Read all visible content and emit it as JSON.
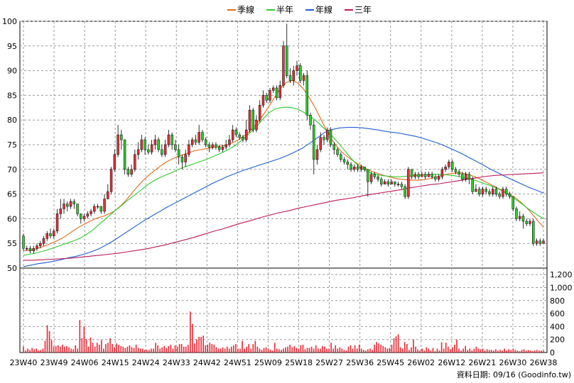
{
  "chart_data": {
    "type": "candlestick",
    "legend": {
      "placement": "top-center",
      "items": [
        {
          "name": "季線",
          "color": "#e06a1a"
        },
        {
          "name": "半年",
          "color": "#2ecc2e"
        },
        {
          "name": "年線",
          "color": "#1f5fd6"
        },
        {
          "name": "三年",
          "color": "#c0185a"
        }
      ]
    },
    "price_axis": {
      "ylim": [
        50,
        100
      ],
      "ticks": [
        "50",
        "55",
        "60",
        "65",
        "70",
        "75",
        "80",
        "85",
        "90",
        "95",
        "100"
      ]
    },
    "volume_axis": {
      "ylim": [
        0,
        1300
      ],
      "ticks": [
        "0",
        "200",
        "400",
        "600",
        "800",
        "1,000",
        "1,200"
      ]
    },
    "x_ticks": [
      "23W40",
      "23W49",
      "24W06",
      "24W15",
      "24W24",
      "24W33",
      "24W42",
      "24W51",
      "25W09",
      "25W18",
      "25W27",
      "25W36",
      "25W45",
      "26W02",
      "26W12",
      "26W21",
      "26W30",
      "26W38"
    ],
    "grid": true,
    "candle_colors": {
      "up": "#e8303a",
      "down": "#2ecc2e"
    },
    "volume_color": "#e8303a",
    "footer_credit": "資料日期: 09/16  (Goodinfo.tw)",
    "candles": [
      [
        56.5,
        54,
        57,
        53.5
      ],
      [
        54,
        54,
        54.5,
        53.5
      ],
      [
        54,
        53.5,
        54.5,
        53
      ],
      [
        53.5,
        54,
        54.5,
        53
      ],
      [
        54,
        54.5,
        55,
        53.5
      ],
      [
        54.5,
        55,
        55.5,
        54
      ],
      [
        55,
        56,
        56.5,
        54.5
      ],
      [
        56,
        57,
        57.5,
        55.5
      ],
      [
        57,
        56.5,
        58,
        56
      ],
      [
        56.5,
        57.5,
        58,
        56
      ],
      [
        57.5,
        61,
        62,
        57
      ],
      [
        61,
        62,
        64,
        60
      ],
      [
        62,
        63,
        64,
        61
      ],
      [
        63,
        62.5,
        63.5,
        61.5
      ],
      [
        62.5,
        63.5,
        64,
        62
      ],
      [
        63.5,
        63,
        64,
        62
      ],
      [
        63,
        61,
        62.5,
        60.5
      ],
      [
        61,
        60,
        61,
        59
      ],
      [
        60,
        60.5,
        61,
        59.5
      ],
      [
        60.5,
        61,
        61.5,
        60
      ],
      [
        61,
        61.5,
        62,
        60.5
      ],
      [
        61.5,
        62.5,
        63,
        61
      ],
      [
        62.5,
        62.5,
        63,
        62
      ],
      [
        62.5,
        61.5,
        62.5,
        61
      ],
      [
        61.5,
        64,
        65,
        61
      ],
      [
        64,
        65.5,
        67,
        64
      ],
      [
        65.5,
        70,
        70.5,
        65
      ],
      [
        70,
        73,
        74,
        69.5
      ],
      [
        73,
        77,
        79,
        72.5
      ],
      [
        77,
        76,
        78,
        74
      ],
      [
        76,
        70,
        72,
        69
      ],
      [
        70,
        69,
        70.5,
        68.5
      ],
      [
        69,
        70,
        71,
        68.5
      ],
      [
        70,
        73,
        74,
        69.5
      ],
      [
        73,
        74,
        75.5,
        72
      ],
      [
        74,
        76,
        77,
        73.5
      ],
      [
        76,
        74,
        76.5,
        73
      ],
      [
        74,
        73.5,
        75,
        73
      ],
      [
        73.5,
        75,
        76,
        73
      ],
      [
        75,
        76,
        77,
        74
      ],
      [
        76,
        74,
        76.5,
        73.5
      ],
      [
        74,
        73,
        75,
        72.5
      ],
      [
        73,
        75,
        76,
        72.5
      ],
      [
        75,
        77,
        78,
        74.5
      ],
      [
        77,
        75,
        77.5,
        74
      ],
      [
        75,
        74,
        76,
        73.5
      ],
      [
        74,
        72.5,
        75,
        71
      ],
      [
        72.5,
        71.5,
        73,
        70
      ],
      [
        71.5,
        73,
        74,
        70.5
      ],
      [
        73,
        75,
        76,
        72.5
      ],
      [
        75,
        76,
        76.5,
        74.5
      ],
      [
        76,
        75.5,
        77,
        75
      ],
      [
        75.5,
        77.5,
        79,
        75
      ],
      [
        77.5,
        76,
        78,
        75.5
      ],
      [
        76,
        75,
        76.5,
        74.5
      ],
      [
        75,
        74.5,
        75.5,
        73.5
      ],
      [
        74.5,
        75,
        75.5,
        74
      ],
      [
        75,
        74.5,
        75.5,
        74
      ],
      [
        74.5,
        74,
        75,
        73.5
      ],
      [
        74,
        74.5,
        75,
        73.5
      ],
      [
        74.5,
        75,
        76,
        74
      ],
      [
        75,
        76,
        77,
        74.5
      ],
      [
        76,
        78,
        79,
        75.5
      ],
      [
        78,
        77,
        78.5,
        76.5
      ],
      [
        77,
        76.5,
        77.5,
        76
      ],
      [
        76.5,
        76,
        77,
        75.5
      ],
      [
        76,
        78,
        80,
        75.5
      ],
      [
        78,
        82,
        83,
        77.5
      ],
      [
        82,
        78,
        82.5,
        77.5
      ],
      [
        78,
        80,
        81,
        77.5
      ],
      [
        80,
        83,
        84,
        79.5
      ],
      [
        83,
        85,
        86,
        82.5
      ],
      [
        85,
        84,
        85.5,
        83.5
      ],
      [
        84,
        86,
        86.5,
        83.5
      ],
      [
        86,
        86.5,
        87,
        85.5
      ],
      [
        86.5,
        84.5,
        87,
        84
      ],
      [
        84.5,
        87,
        88,
        84
      ],
      [
        87,
        95,
        96,
        86.5
      ],
      [
        95,
        89,
        99.5,
        88.5
      ],
      [
        89,
        88,
        90.5,
        87.5
      ],
      [
        88,
        90,
        91,
        87
      ],
      [
        90,
        91,
        92,
        89
      ],
      [
        91,
        88,
        91.5,
        87.5
      ],
      [
        88,
        89,
        89.5,
        87
      ],
      [
        89,
        81,
        90,
        80
      ],
      [
        81,
        79,
        81.5,
        78
      ],
      [
        79,
        72,
        80,
        69
      ],
      [
        72,
        74,
        75,
        71
      ],
      [
        74,
        76.5,
        77.5,
        73.5
      ],
      [
        76.5,
        76,
        77,
        75
      ],
      [
        76,
        78,
        78.5,
        75.5
      ],
      [
        78,
        75,
        78.5,
        74.5
      ],
      [
        75,
        74,
        75.5,
        73
      ],
      [
        74,
        73,
        74.5,
        72.5
      ],
      [
        73,
        72,
        73.5,
        71.5
      ],
      [
        72,
        71.5,
        72.5,
        71
      ],
      [
        71.5,
        71,
        72,
        70
      ],
      [
        71,
        70,
        71.5,
        69.5
      ],
      [
        70,
        70.5,
        71,
        69.5
      ],
      [
        70.5,
        70,
        71,
        69.5
      ],
      [
        70,
        70.5,
        71,
        69.5
      ],
      [
        70.5,
        70,
        70.5,
        69.5
      ],
      [
        70,
        67.5,
        70,
        64.5
      ],
      [
        67.5,
        69,
        69.5,
        67
      ],
      [
        69,
        68.5,
        69.5,
        68
      ],
      [
        68.5,
        68,
        69,
        67.5
      ],
      [
        68,
        67,
        68.5,
        66.5
      ],
      [
        67,
        67.5,
        68,
        67
      ],
      [
        67.5,
        67,
        68,
        66.5
      ],
      [
        67,
        67.5,
        68,
        67
      ],
      [
        67.5,
        67,
        67.5,
        66.5
      ],
      [
        67,
        67,
        67.5,
        66.5
      ],
      [
        67,
        66.5,
        67.5,
        66
      ],
      [
        66.5,
        64.5,
        67,
        64
      ],
      [
        64.5,
        70,
        70.5,
        64
      ],
      [
        70,
        68.5,
        70,
        68
      ],
      [
        68.5,
        69,
        69.5,
        68
      ],
      [
        69,
        68.5,
        69.5,
        68
      ],
      [
        68.5,
        69,
        69.5,
        68.5
      ],
      [
        69,
        68.5,
        69.5,
        68
      ],
      [
        68.5,
        69,
        69.5,
        68.5
      ],
      [
        69,
        68.5,
        69.5,
        68
      ],
      [
        68.5,
        68,
        69,
        67.5
      ],
      [
        68,
        68.5,
        69,
        67.5
      ],
      [
        68.5,
        70,
        70.5,
        68
      ],
      [
        70,
        70.5,
        71,
        69.5
      ],
      [
        70.5,
        71.5,
        72,
        70
      ],
      [
        71.5,
        70,
        72,
        69.5
      ],
      [
        70,
        69.5,
        70.5,
        69
      ],
      [
        69.5,
        69,
        70,
        68.5
      ],
      [
        69,
        68,
        69.5,
        67.5
      ],
      [
        68,
        69,
        69.5,
        67.5
      ],
      [
        69,
        68,
        69.5,
        67
      ],
      [
        68,
        65.5,
        68.5,
        65
      ],
      [
        65.5,
        66,
        67,
        65.5
      ],
      [
        66,
        65,
        66.5,
        64.5
      ],
      [
        65,
        66,
        66.5,
        64.5
      ],
      [
        66,
        65.5,
        66.5,
        65
      ],
      [
        65.5,
        65,
        66,
        64.5
      ],
      [
        65,
        66,
        66.5,
        64.5
      ],
      [
        66,
        65,
        66.5,
        64.5
      ],
      [
        65,
        64.5,
        65.5,
        64
      ],
      [
        64.5,
        66,
        66.5,
        64
      ],
      [
        66,
        65,
        66.5,
        64.5
      ],
      [
        65,
        64.5,
        65.5,
        64
      ],
      [
        64.5,
        62,
        64.5,
        61.5
      ],
      [
        62,
        60,
        62.5,
        59.5
      ],
      [
        60,
        60.5,
        61.5,
        59.5
      ],
      [
        60.5,
        59.5,
        61,
        58
      ],
      [
        59.5,
        59,
        60,
        58.5
      ],
      [
        59,
        59.5,
        60,
        58.5
      ],
      [
        59.5,
        55,
        60,
        54.5
      ],
      [
        55,
        55.5,
        56,
        54.5
      ],
      [
        55.5,
        55,
        56,
        54.5
      ],
      [
        55,
        55.5,
        56,
        55
      ]
    ],
    "volumes": [
      90,
      30,
      60,
      40,
      70,
      50,
      60,
      30,
      40,
      60,
      180,
      420,
      330,
      190,
      90,
      100,
      110,
      90,
      120,
      90,
      100,
      80,
      60,
      50,
      110,
      60,
      500,
      220,
      400,
      210,
      90,
      230,
      150,
      90,
      150,
      120,
      190,
      60,
      130,
      150,
      220,
      130,
      80,
      140,
      120,
      100,
      90,
      70,
      90,
      110,
      80,
      70,
      120,
      70,
      60,
      60,
      40,
      40,
      40,
      60,
      60,
      150,
      110,
      60,
      80,
      100,
      70,
      100,
      120,
      60,
      110,
      90,
      130,
      130,
      90,
      90,
      120,
      630,
      440,
      140,
      200,
      240,
      240,
      260,
      110,
      120,
      150,
      130,
      120,
      80,
      60,
      60,
      80,
      60,
      90,
      60,
      90,
      110,
      130,
      60,
      60,
      180,
      60,
      90,
      130,
      60,
      130,
      180,
      90,
      60,
      40,
      70,
      80,
      60,
      40,
      30,
      150,
      60,
      50,
      40,
      60,
      80,
      90,
      120,
      80,
      100,
      70,
      60,
      110,
      120,
      50,
      70,
      70,
      90,
      60,
      110,
      60,
      60,
      100,
      90,
      60,
      60,
      150,
      60,
      110,
      60,
      80,
      60,
      40,
      30,
      90,
      110,
      60,
      110,
      60,
      120,
      60,
      40,
      30,
      50,
      60,
      40,
      120,
      160,
      140,
      120,
      100,
      80,
      60,
      70,
      120,
      220,
      250,
      280,
      80,
      60,
      160,
      130,
      40,
      80,
      200,
      90,
      50,
      30,
      60,
      30,
      80,
      60,
      30,
      70,
      20,
      60,
      30,
      160,
      60,
      150,
      90,
      50,
      80,
      120,
      200,
      60,
      30,
      60,
      100,
      40,
      60,
      30,
      60,
      90,
      60,
      50,
      60,
      30,
      50,
      40,
      40,
      30,
      50,
      30,
      40,
      30,
      60,
      30,
      50,
      40,
      60,
      40,
      30,
      20,
      40,
      50,
      30,
      40,
      30,
      20,
      30,
      40,
      30,
      30,
      30
    ],
    "series": [
      {
        "name": "季線",
        "values": [
          53.5,
          53.6,
          53.8,
          54.2,
          54.6,
          55.1,
          55.6,
          56.2,
          57,
          57.8,
          58.5,
          59.1,
          59.7,
          60.2,
          60.5,
          61,
          61.6,
          62.6,
          63.8,
          65.2,
          66.6,
          67.8,
          68.9,
          69.8,
          70.7,
          71.5,
          72.1,
          72.6,
          73,
          73.4,
          73.8,
          74,
          74.2,
          74.4,
          74.6,
          74.8,
          75.1,
          75.6,
          76.3,
          77.1,
          78.2,
          79.5,
          81.1,
          82.8,
          84.7,
          86.5,
          87.6,
          88,
          87.5,
          86.3,
          84.6,
          82.6,
          80.3,
          78,
          76,
          74.4,
          73.2,
          72.3,
          71.5,
          70.8,
          70.1,
          69.6,
          69.2,
          68.8,
          68.5,
          68.2,
          68,
          67.9,
          67.8,
          67.8,
          67.9,
          68.1,
          68.4,
          68.7,
          69,
          69.2,
          69.3,
          69.2,
          68.9,
          68.5,
          68,
          67.4,
          66.8,
          66.2,
          65.6,
          65,
          64.3,
          63.4,
          62.3,
          61,
          59.6,
          58.3
        ]
      },
      {
        "name": "半年",
        "values": [
          52.6,
          52.8,
          53,
          53.3,
          53.6,
          54,
          54.4,
          54.8,
          55.2,
          55.6,
          56.1,
          56.8,
          57.6,
          58.6,
          59.6,
          60.6,
          61.6,
          62.5,
          63.5,
          64.4,
          65.3,
          66.2,
          67.1,
          67.8,
          68.4,
          68.9,
          69.4,
          69.9,
          70.4,
          70.8,
          71.2,
          71.6,
          72,
          72.5,
          73,
          73.5,
          74.1,
          74.8,
          75.7,
          76.7,
          77.8,
          79,
          80.3,
          81.5,
          82.2,
          82.5,
          82.6,
          82.5,
          82.2,
          81.6,
          80.9,
          80,
          79,
          77.9,
          76.8,
          75.5,
          74.1,
          72.7,
          71.4,
          70.4,
          69.7,
          69.2,
          68.9,
          68.7,
          68.6,
          68.5,
          68.5,
          68.6,
          68.7,
          68.8,
          68.9,
          69,
          69,
          69,
          68.9,
          68.8,
          68.6,
          68.3,
          68.1,
          67.8,
          67.4,
          67,
          66.6,
          66.1,
          65.5,
          64.8,
          64,
          63.2,
          62.3,
          61.5,
          60.7,
          60
        ]
      },
      {
        "name": "年線",
        "values": [
          50.3,
          50.6,
          50.9,
          51.1,
          51.4,
          51.7,
          52.1,
          52.4,
          52.8,
          53.3,
          53.9,
          54.7,
          55.6,
          56.6,
          57.6,
          58.6,
          59.6,
          60.5,
          61.4,
          62.3,
          63.1,
          63.9,
          64.7,
          65.5,
          66.3,
          67.1,
          67.8,
          68.5,
          69.1,
          69.7,
          70.2,
          70.7,
          71.2,
          71.7,
          72.2,
          72.8,
          73.5,
          74.3,
          75.3,
          76.4,
          77.5,
          78.1,
          78.4,
          78.5,
          78.5,
          78.4,
          78.2,
          78,
          77.7,
          77.5,
          77.3,
          77,
          76.7,
          76.3,
          75.8,
          75.3,
          74.7,
          74,
          73.3,
          72.5,
          71.7,
          70.9,
          70,
          69.3,
          68.5,
          67.8,
          67.1,
          66.4,
          65.8,
          65.2
        ]
      },
      {
        "name": "三年",
        "values": [
          51.6,
          51.6,
          51.7,
          51.8,
          51.9,
          52,
          52.2,
          52.4,
          52.6,
          52.8,
          53,
          53.3,
          53.6,
          53.9,
          54.3,
          54.7,
          55.2,
          55.7,
          56.2,
          56.8,
          57.4,
          57.9,
          58.5,
          59.1,
          59.6,
          60.2,
          60.7,
          61.2,
          61.6,
          62.1,
          62.5,
          62.9,
          63.3,
          63.7,
          64,
          64.3,
          64.7,
          65,
          65.3,
          65.6,
          65.9,
          66.3,
          66.6,
          66.9,
          67.1,
          67.4,
          67.7,
          68,
          68.3,
          68.6,
          68.8,
          68.9,
          69,
          69.1,
          69.2,
          69.3
        ]
      }
    ]
  }
}
